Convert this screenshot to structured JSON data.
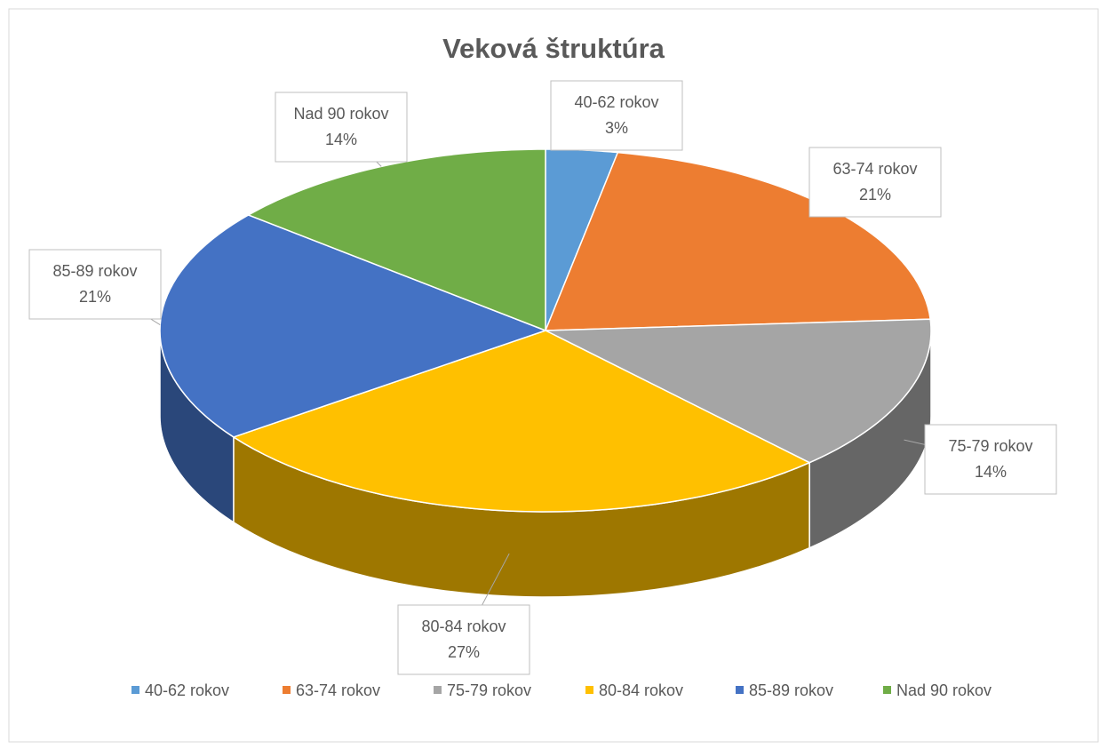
{
  "chart_data": {
    "type": "pie3d",
    "title": "Veková štruktúra",
    "categories": [
      "40-62 rokov",
      "63-74 rokov",
      "75-79 rokov",
      "80-84 rokov",
      "85-89 rokov",
      "Nad 90 rokov"
    ],
    "values": [
      3,
      21,
      14,
      27,
      21,
      14
    ],
    "value_labels": [
      "3%",
      "21%",
      "14%",
      "27%",
      "21%",
      "14%"
    ],
    "colors": [
      "#5b9bd5",
      "#ed7d31",
      "#a5a5a5",
      "#ffc000",
      "#4472c4",
      "#70ad47"
    ],
    "legend": "bottom"
  }
}
